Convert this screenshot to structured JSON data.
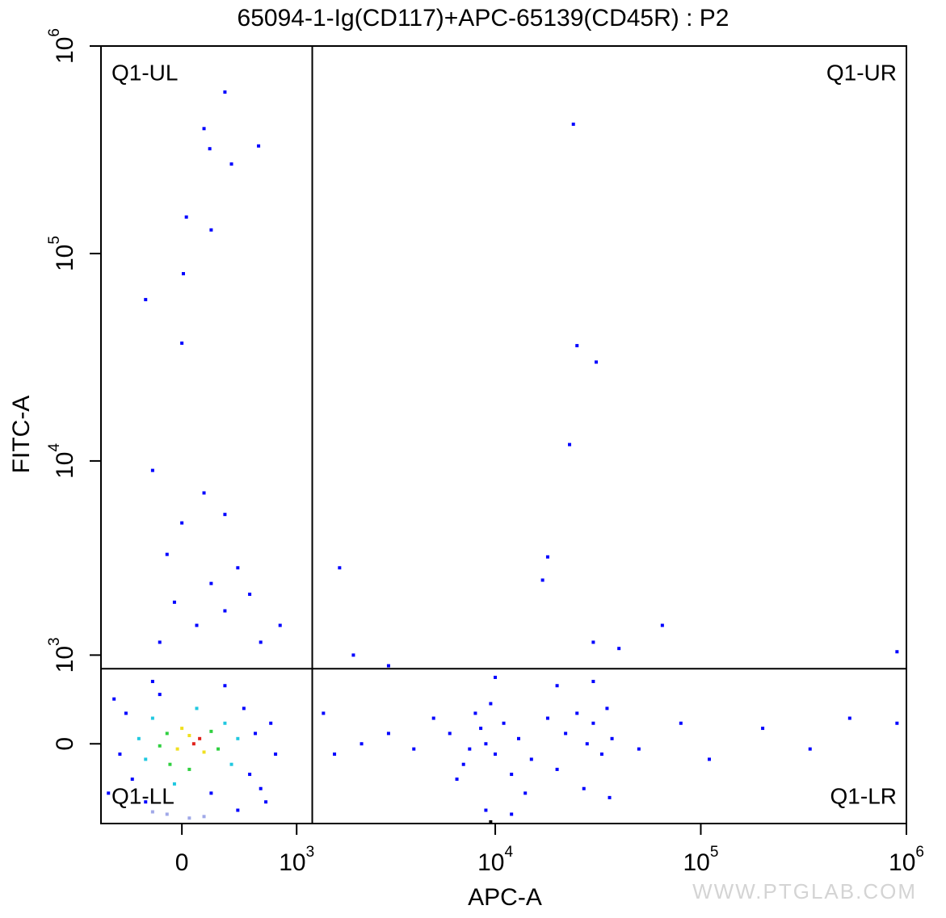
{
  "chart_data": {
    "type": "scatter",
    "title": "65094-1-Ig(CD117)+APC-65139(CD45R) : P2",
    "x_label": "APC-A",
    "y_label": "FITC-A",
    "watermark": "WWW.PTGLAB.COM",
    "xscale": "biexponential",
    "yscale": "biexponential",
    "xlim": [
      -620,
      1000000
    ],
    "ylim": [
      -873,
      1000000
    ],
    "xticks": [
      0,
      {
        "value": 1000,
        "label": "10",
        "sup": "3"
      },
      {
        "value": 10000,
        "label": "10",
        "sup": "4"
      },
      {
        "value": 100000,
        "label": "10",
        "sup": "5"
      },
      {
        "value": 1000000,
        "label": "10",
        "sup": "6"
      }
    ],
    "yticks": [
      0,
      {
        "value": 1000,
        "label": "10",
        "sup": "3"
      },
      {
        "value": 10000,
        "label": "10",
        "sup": "4"
      },
      {
        "value": 100000,
        "label": "10",
        "sup": "5"
      },
      {
        "value": 1000000,
        "label": "10",
        "sup": "6"
      }
    ],
    "gate": {
      "x": 1220,
      "y": 810
    },
    "quadrants": {
      "UL": "Q1-UL",
      "UR": "Q1-UR",
      "LL": "Q1-LL",
      "LR": "Q1-LR"
    },
    "x": [
      80,
      120,
      50,
      -30,
      150,
      0,
      -100,
      200,
      -80,
      250,
      50,
      -150,
      -200,
      300,
      -250,
      350,
      100,
      -50,
      400,
      -300,
      -400,
      450,
      -350,
      500,
      200,
      -150,
      550,
      -450,
      600,
      -500,
      300,
      -250,
      700,
      650,
      -200,
      400,
      -550,
      750,
      -100,
      50,
      150,
      -200,
      -150,
      100,
      300,
      -50,
      200,
      400,
      -100,
      0,
      300,
      150,
      -200,
      -250,
      30,
      200,
      0,
      150,
      190,
      300,
      350,
      580,
      10,
      600,
      800,
      500,
      1700,
      2000,
      3000,
      23000,
      25000,
      31000,
      24000,
      18000,
      17000,
      65000,
      900000,
      40000,
      30000,
      6000,
      7000,
      8000,
      9000,
      10000,
      11000,
      12000,
      8500,
      7500,
      9500,
      13000,
      15000,
      18000,
      20000,
      22000,
      25000,
      28000,
      30000,
      33000,
      35000,
      37000,
      6500,
      5000,
      4000,
      3000,
      2200,
      1600,
      1400,
      50000,
      110000,
      80000,
      200000,
      340000,
      530000,
      900000,
      9000,
      14000,
      27000,
      36000,
      20000,
      30000,
      10000,
      12000,
      9500
    ],
    "y": [
      0,
      50,
      80,
      -50,
      -80,
      150,
      100,
      120,
      -200,
      -50,
      -250,
      -20,
      250,
      200,
      -150,
      -200,
      350,
      -400,
      50,
      50,
      300,
      350,
      -350,
      -300,
      -500,
      500,
      100,
      -100,
      -450,
      450,
      600,
      -600,
      200,
      -600,
      650,
      -700,
      -500,
      -100,
      -750,
      -800,
      -780,
      -720,
      1200,
      1500,
      1800,
      2000,
      2500,
      3000,
      3500,
      5000,
      5500,
      7000,
      9000,
      60000,
      150000,
      130000,
      37000,
      400000,
      320000,
      600000,
      270000,
      330000,
      80000,
      1200,
      1500,
      2200,
      3000,
      1000,
      850,
      12000,
      36000,
      30000,
      420000,
      3400,
      2600,
      1500,
      1050,
      1100,
      1200,
      100,
      -200,
      300,
      0,
      -100,
      200,
      -300,
      150,
      -50,
      400,
      50,
      -150,
      250,
      -250,
      100,
      300,
      0,
      200,
      -100,
      350,
      50,
      -350,
      250,
      -50,
      100,
      0,
      -100,
      300,
      -50,
      -150,
      200,
      150,
      -50,
      250,
      200,
      -700,
      -500,
      -450,
      -550,
      600,
      650,
      700,
      -750,
      -850
    ],
    "colors": [
      "#e0201a",
      "#e0201a",
      "#f0e020",
      "#f0e020",
      "#f0e020",
      "#f0e020",
      "#30d040",
      "#30d040",
      "#30d040",
      "#30d040",
      "#30d040",
      "#30d040",
      "#20c8e0",
      "#20c8e0",
      "#20c8e0",
      "#20c8e0",
      "#20c8e0",
      "#20c8e0",
      "#20c8e0",
      "#20c8e0",
      "#0000ff",
      "#0000ff",
      "#0000ff",
      "#0000ff",
      "#0000ff",
      "#0000ff",
      "#0000ff",
      "#0000ff",
      "#0000ff",
      "#0000ff",
      "#0000ff",
      "#0000ff",
      "#0000ff",
      "#0000ff",
      "#0000ff",
      "#0000ff",
      "#0000ff",
      "#0000ff",
      "#a0a8e8",
      "#a0a8e8",
      "#a0a8e8",
      "#a0a8e8",
      "#0000ff",
      "#0000ff",
      "#0000ff",
      "#0000ff",
      "#0000ff",
      "#0000ff",
      "#0000ff",
      "#0000ff",
      "#0000ff",
      "#0000ff",
      "#0000ff",
      "#0000ff",
      "#0000ff",
      "#0000ff",
      "#0000ff",
      "#0000ff",
      "#0000ff",
      "#0000ff",
      "#0000ff",
      "#0000ff",
      "#0000ff",
      "#0000ff",
      "#0000ff",
      "#0000ff",
      "#0000ff",
      "#0000ff",
      "#0000ff",
      "#0000ff",
      "#0000ff",
      "#0000ff",
      "#0000ff",
      "#0000ff",
      "#0000ff",
      "#0000ff",
      "#0000ff",
      "#0000ff",
      "#0000ff",
      "#0000ff",
      "#0000ff",
      "#0000ff",
      "#0000ff",
      "#0000ff",
      "#0000ff",
      "#0000ff",
      "#0000ff",
      "#0000ff",
      "#0000ff",
      "#0000ff",
      "#0000ff",
      "#0000ff",
      "#0000ff",
      "#0000ff",
      "#0000ff",
      "#0000ff",
      "#0000ff",
      "#0000ff",
      "#0000ff",
      "#0000ff",
      "#0000ff",
      "#0000ff",
      "#0000ff",
      "#0000ff",
      "#0000ff",
      "#0000ff",
      "#0000ff",
      "#0000ff",
      "#0000ff",
      "#0000ff",
      "#0000ff",
      "#0000ff",
      "#0000ff",
      "#0000ff",
      "#0000ff",
      "#0000ff",
      "#0000ff",
      "#0000ff",
      "#0000ff",
      "#0000ff",
      "#0000ff",
      "#0000ff"
    ]
  }
}
